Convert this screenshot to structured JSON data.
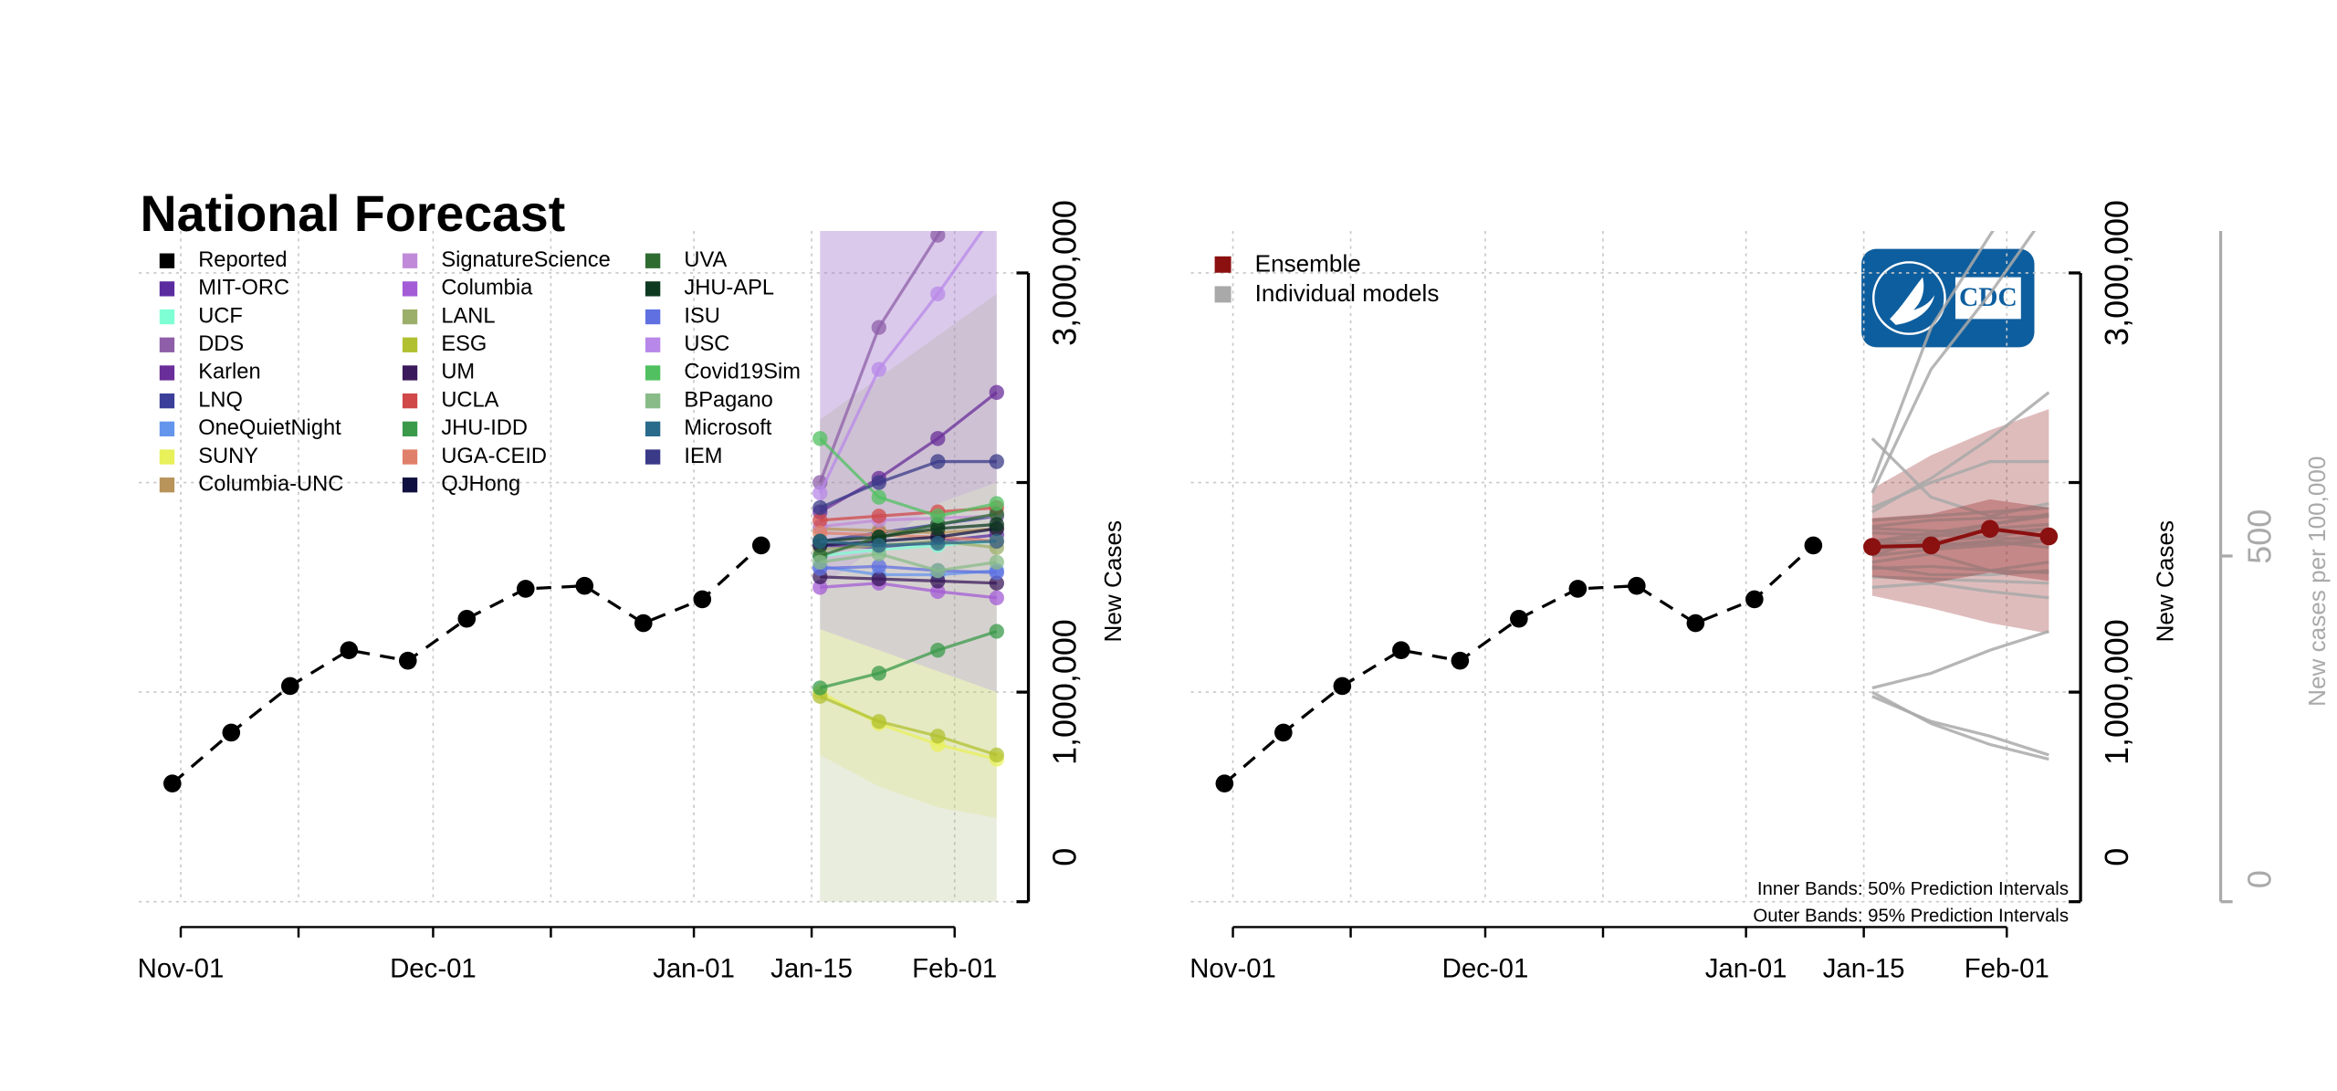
{
  "chart_data": [
    {
      "type": "line",
      "title": "National Forecast",
      "y_label": "New Cases",
      "xlim": [
        "Oct-27",
        "Feb-08"
      ],
      "xticks": [
        "Nov-01",
        {
          "value": "Nov-15",
          "label": null
        },
        "Dec-01",
        {
          "value": "Dec-15",
          "label": null
        },
        "Jan-01",
        "Jan-15",
        "Feb-01"
      ],
      "ylim": [
        0,
        3200000
      ],
      "yticks": [
        0,
        {
          "value": 1000000,
          "label": "1,000,000"
        },
        {
          "value": 2000000,
          "label": null
        },
        {
          "value": 3000000,
          "label": "3,000,000"
        }
      ],
      "grid": true,
      "legend": "top-left",
      "series": [
        {
          "name": "Reported",
          "color": "#000000",
          "dashed": true,
          "x": [
            "Oct-31",
            "Nov-07",
            "Nov-14",
            "Nov-21",
            "Nov-28",
            "Dec-05",
            "Dec-12",
            "Dec-19",
            "Dec-26",
            "Jan-02",
            "Jan-09"
          ],
          "values": [
            564000,
            807000,
            1029000,
            1200000,
            1150000,
            1350000,
            1493000,
            1507000,
            1329000,
            1443000,
            1700000
          ]
        },
        {
          "name": "MIT-ORC",
          "color": "#5a2ca0",
          "x": [
            "Jan-16",
            "Jan-23",
            "Jan-30",
            "Feb-06"
          ],
          "values": [
            1700000,
            1690000,
            1720000,
            1750000
          ]
        },
        {
          "name": "UCF",
          "color": "#7fffd4",
          "x": [
            "Jan-16",
            "Jan-23",
            "Jan-30",
            "Feb-06"
          ],
          "values": [
            1650000,
            1680000,
            1700000,
            1720000
          ]
        },
        {
          "name": "DDS",
          "color": "#8e5fa8",
          "x": [
            "Jan-16",
            "Jan-23",
            "Jan-30",
            "Feb-06"
          ],
          "values": [
            2000000,
            2740000,
            3180000,
            3600000
          ],
          "lower": [
            1300000,
            1200000,
            1100000,
            1000000
          ],
          "upper": [
            3400000,
            3600000,
            3800000,
            4000000
          ]
        },
        {
          "name": "Karlen",
          "color": "#6a2e9a",
          "x": [
            "Jan-16",
            "Jan-23",
            "Jan-30",
            "Feb-06"
          ],
          "values": [
            1860000,
            2020000,
            2210000,
            2430000
          ]
        },
        {
          "name": "LNQ",
          "color": "#3b3f9a",
          "x": [
            "Jan-16",
            "Jan-23",
            "Jan-30",
            "Feb-06"
          ],
          "values": [
            1720000,
            1760000,
            1800000,
            1840000
          ]
        },
        {
          "name": "OneQuietNight",
          "color": "#6495ed",
          "x": [
            "Jan-16",
            "Jan-23",
            "Jan-30",
            "Feb-06"
          ],
          "values": [
            1600000,
            1560000,
            1560000,
            1580000
          ]
        },
        {
          "name": "SUNY",
          "color": "#e8f05a",
          "x": [
            "Jan-16",
            "Jan-23",
            "Jan-30",
            "Feb-06"
          ],
          "values": [
            1000000,
            850000,
            750000,
            680000
          ],
          "lower": [
            700000,
            550000,
            450000,
            400000
          ],
          "upper": [
            1300000,
            1200000,
            1100000,
            1000000
          ]
        },
        {
          "name": "Columbia-UNC",
          "color": "#b8935a",
          "x": [
            "Jan-16",
            "Jan-23",
            "Jan-30",
            "Feb-06"
          ],
          "values": [
            1780000,
            1770000,
            1760000,
            1780000
          ]
        },
        {
          "name": "SignatureScience",
          "color": "#c08ad8",
          "x": [
            "Jan-16",
            "Jan-23",
            "Jan-30",
            "Feb-06"
          ],
          "values": [
            1790000,
            1820000,
            1830000,
            1840000
          ]
        },
        {
          "name": "Columbia",
          "color": "#a35cd6",
          "x": [
            "Jan-16",
            "Jan-23",
            "Jan-30",
            "Feb-06"
          ],
          "values": [
            1500000,
            1520000,
            1480000,
            1450000
          ]
        },
        {
          "name": "LANL",
          "color": "#9caf6a",
          "x": [
            "Jan-16",
            "Jan-23",
            "Jan-30",
            "Feb-06"
          ],
          "values": [
            1680000,
            1700000,
            1720000,
            1690000
          ],
          "lower": [
            0,
            0,
            0,
            0
          ],
          "upper": [
            2300000,
            2500000,
            2700000,
            2900000
          ]
        },
        {
          "name": "ESG",
          "color": "#b0c030",
          "x": [
            "Jan-16",
            "Jan-23",
            "Jan-30",
            "Feb-06"
          ],
          "values": [
            980000,
            860000,
            790000,
            700000
          ]
        },
        {
          "name": "UM",
          "color": "#3a1a5a",
          "x": [
            "Jan-16",
            "Jan-23",
            "Jan-30",
            "Feb-06"
          ],
          "values": [
            1550000,
            1540000,
            1530000,
            1520000
          ]
        },
        {
          "name": "UCLA",
          "color": "#d04848",
          "x": [
            "Jan-16",
            "Jan-23",
            "Jan-30",
            "Feb-06"
          ],
          "values": [
            1820000,
            1840000,
            1860000,
            1880000
          ]
        },
        {
          "name": "JHU-IDD",
          "color": "#3a9a4a",
          "x": [
            "Jan-16",
            "Jan-23",
            "Jan-30",
            "Feb-06"
          ],
          "values": [
            1020000,
            1090000,
            1200000,
            1290000
          ]
        },
        {
          "name": "UGA-CEID",
          "color": "#e0806a",
          "x": [
            "Jan-16",
            "Jan-23",
            "Jan-30",
            "Feb-06"
          ],
          "values": [
            1760000,
            1750000,
            1740000,
            1720000
          ]
        },
        {
          "name": "QJHong",
          "color": "#101040",
          "x": [
            "Jan-16",
            "Jan-23",
            "Jan-30",
            "Feb-06"
          ],
          "values": [
            1700000,
            1720000,
            1740000,
            1780000
          ]
        },
        {
          "name": "UVA",
          "color": "#2e6b30",
          "x": [
            "Jan-16",
            "Jan-23",
            "Jan-30",
            "Feb-06"
          ],
          "values": [
            1650000,
            1740000,
            1800000,
            1850000
          ]
        },
        {
          "name": "JHU-APL",
          "color": "#0d3a20",
          "x": [
            "Jan-16",
            "Jan-23",
            "Jan-30",
            "Feb-06"
          ],
          "values": [
            1720000,
            1740000,
            1780000,
            1800000
          ]
        },
        {
          "name": "ISU",
          "color": "#6070e0",
          "x": [
            "Jan-16",
            "Jan-23",
            "Jan-30",
            "Feb-06"
          ],
          "values": [
            1590000,
            1600000,
            1580000,
            1570000
          ]
        },
        {
          "name": "USC",
          "color": "#b888e8",
          "x": [
            "Jan-16",
            "Jan-23",
            "Jan-30",
            "Feb-06"
          ],
          "values": [
            1950000,
            2540000,
            2900000,
            3300000
          ],
          "lower": [
            1500000,
            1700000,
            1900000,
            2000000
          ],
          "upper": [
            3400000,
            3600000,
            3800000,
            4000000
          ]
        },
        {
          "name": "Covid19Sim",
          "color": "#50c060",
          "x": [
            "Jan-16",
            "Jan-23",
            "Jan-30",
            "Feb-06"
          ],
          "values": [
            2210000,
            1930000,
            1840000,
            1900000
          ]
        },
        {
          "name": "BPagano",
          "color": "#88bb88",
          "x": [
            "Jan-16",
            "Jan-23",
            "Jan-30",
            "Feb-06"
          ],
          "values": [
            1620000,
            1660000,
            1580000,
            1620000
          ]
        },
        {
          "name": "Microsoft",
          "color": "#2a6a8a",
          "x": [
            "Jan-16",
            "Jan-23",
            "Jan-30",
            "Feb-06"
          ],
          "values": [
            1720000,
            1700000,
            1710000,
            1720000
          ]
        },
        {
          "name": "IEM",
          "color": "#3a3a88",
          "x": [
            "Jan-16",
            "Jan-23",
            "Jan-30",
            "Feb-06"
          ],
          "values": [
            1880000,
            2000000,
            2100000,
            2100000
          ]
        }
      ]
    },
    {
      "type": "line",
      "y_label": "New Cases",
      "y2_label": "New cases per 100,000",
      "xlim": [
        "Oct-27",
        "Feb-08"
      ],
      "xticks": [
        "Nov-01",
        {
          "value": "Nov-15",
          "label": null
        },
        "Dec-01",
        {
          "value": "Dec-15",
          "label": null
        },
        "Jan-01",
        "Jan-15",
        "Feb-01"
      ],
      "ylim": [
        0,
        3200000
      ],
      "yticks": [
        0,
        {
          "value": 1000000,
          "label": "1,000,000"
        },
        {
          "value": 2000000,
          "label": null
        },
        {
          "value": 3000000,
          "label": "3,000,000"
        }
      ],
      "y2lim": [
        0,
        970
      ],
      "y2ticks": [
        0,
        500
      ],
      "grid": true,
      "legend": "top-left",
      "notes": [
        "Inner Bands: 50% Prediction Intervals",
        "Outer Bands: 95% Prediction Intervals"
      ],
      "logo_text": "CDC",
      "reported": {
        "color": "#000000",
        "dashed": true,
        "x": [
          "Oct-31",
          "Nov-07",
          "Nov-14",
          "Nov-21",
          "Nov-28",
          "Dec-05",
          "Dec-12",
          "Dec-19",
          "Dec-26",
          "Jan-02",
          "Jan-09"
        ],
        "values": [
          564000,
          807000,
          1029000,
          1200000,
          1150000,
          1350000,
          1493000,
          1507000,
          1329000,
          1443000,
          1700000
        ]
      },
      "ensemble": {
        "name": "Ensemble",
        "color": "#8b1010",
        "x": [
          "Jan-16",
          "Jan-23",
          "Jan-30",
          "Feb-06"
        ],
        "values": [
          1693000,
          1700000,
          1779000,
          1743000
        ],
        "lower50": [
          1550000,
          1520000,
          1570000,
          1530000
        ],
        "upper50": [
          1830000,
          1850000,
          1920000,
          1880000
        ],
        "lower95": [
          1460000,
          1400000,
          1330000,
          1280000
        ],
        "upper95": [
          1970000,
          2130000,
          2250000,
          2350000
        ]
      },
      "individual_models": {
        "name": "Individual models",
        "color": "#a9a9a9",
        "x": [
          "Jan-16",
          "Jan-23",
          "Jan-30",
          "Feb-06"
        ],
        "lines": [
          [
            1700000,
            1690000,
            1720000,
            1750000
          ],
          [
            1650000,
            1680000,
            1700000,
            1720000
          ],
          [
            2000000,
            2740000,
            3180000,
            3600000
          ],
          [
            1860000,
            2020000,
            2210000,
            2430000
          ],
          [
            1720000,
            1760000,
            1800000,
            1840000
          ],
          [
            1600000,
            1560000,
            1560000,
            1580000
          ],
          [
            1000000,
            850000,
            750000,
            680000
          ],
          [
            1780000,
            1770000,
            1760000,
            1780000
          ],
          [
            1790000,
            1820000,
            1830000,
            1840000
          ],
          [
            1500000,
            1520000,
            1480000,
            1450000
          ],
          [
            1680000,
            1700000,
            1720000,
            1690000
          ],
          [
            980000,
            860000,
            790000,
            700000
          ],
          [
            1550000,
            1540000,
            1530000,
            1520000
          ],
          [
            1820000,
            1840000,
            1860000,
            1880000
          ],
          [
            1020000,
            1090000,
            1200000,
            1290000
          ],
          [
            1760000,
            1750000,
            1740000,
            1720000
          ],
          [
            1700000,
            1720000,
            1740000,
            1780000
          ],
          [
            1650000,
            1740000,
            1800000,
            1850000
          ],
          [
            1720000,
            1740000,
            1780000,
            1800000
          ],
          [
            1590000,
            1600000,
            1580000,
            1570000
          ],
          [
            1950000,
            2540000,
            2900000,
            3300000
          ],
          [
            2210000,
            1930000,
            1840000,
            1900000
          ],
          [
            1620000,
            1660000,
            1580000,
            1620000
          ],
          [
            1720000,
            1700000,
            1710000,
            1720000
          ],
          [
            1880000,
            2000000,
            2100000,
            2100000
          ]
        ]
      }
    }
  ]
}
